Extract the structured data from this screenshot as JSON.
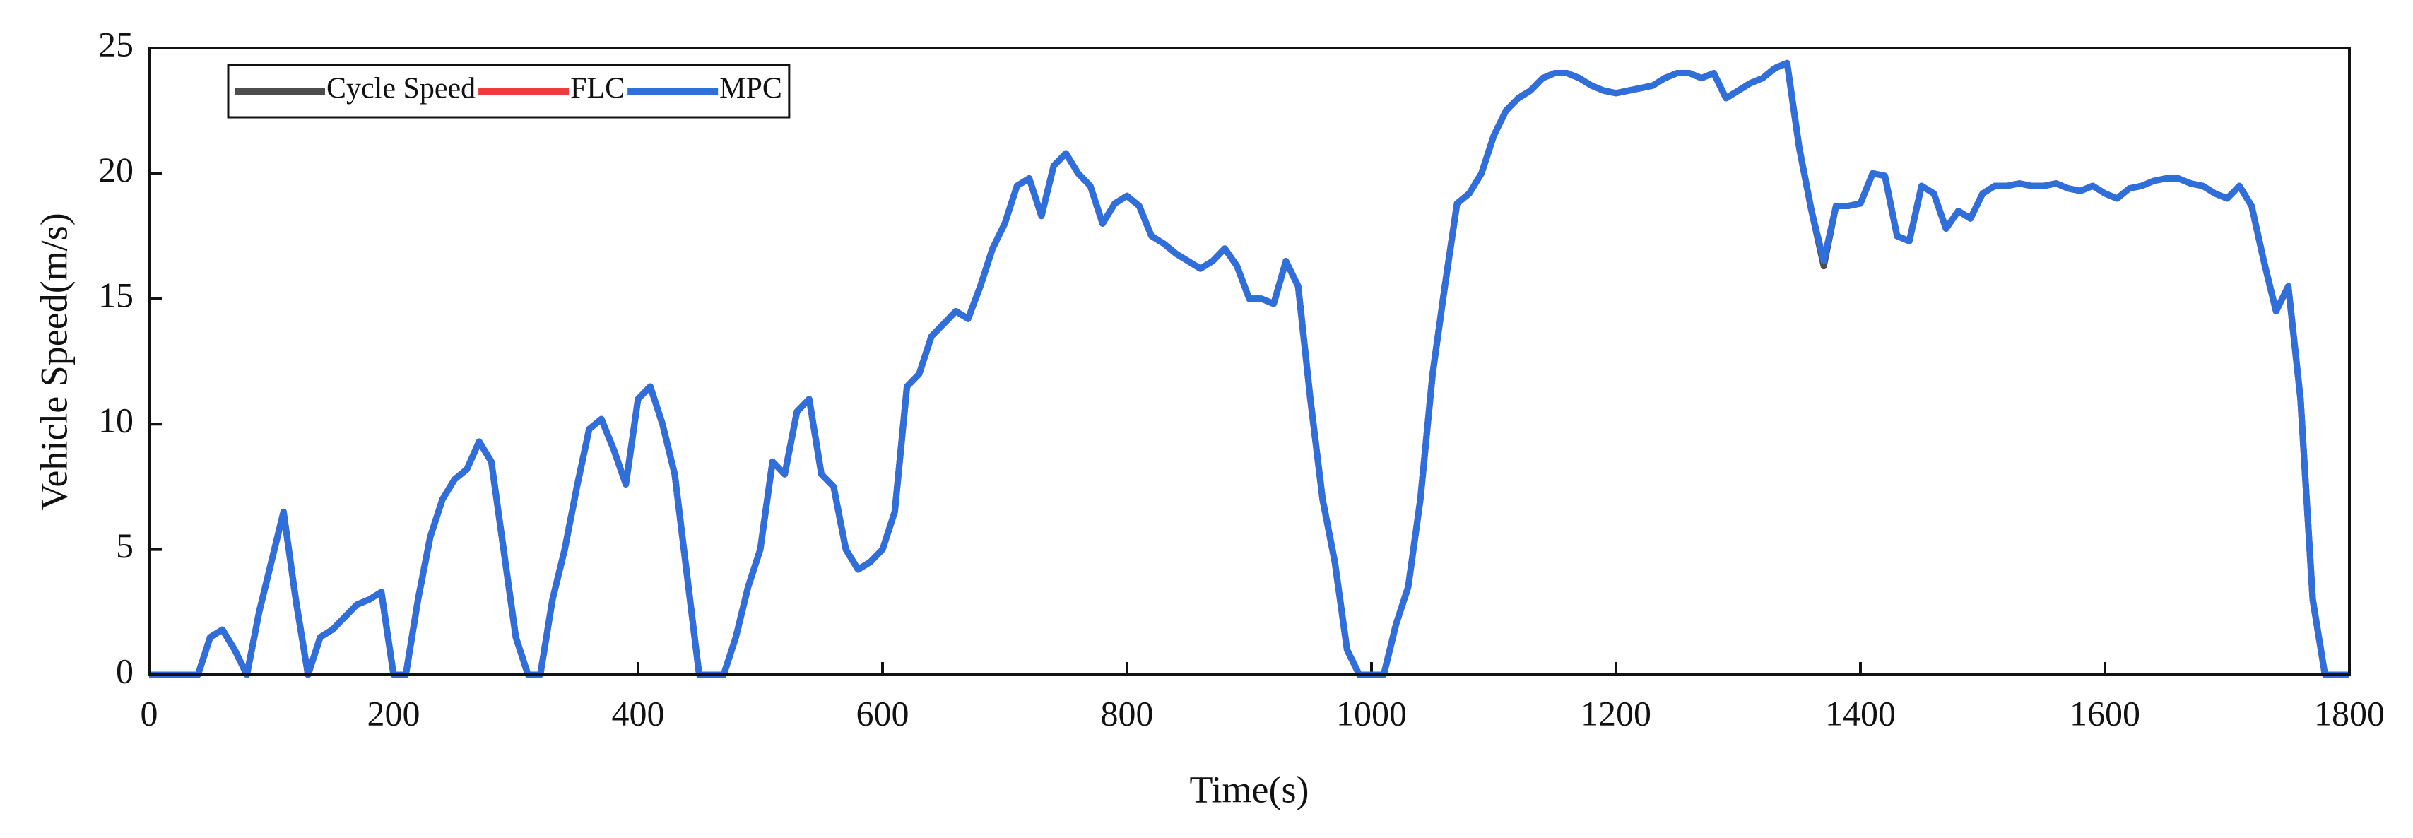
{
  "chart_data": {
    "type": "line",
    "xlabel": "Time(s)",
    "ylabel": "Vehicle Speed(m/s)",
    "xlim": [
      0,
      1800
    ],
    "xticks": [
      0,
      200,
      400,
      600,
      800,
      1000,
      1200,
      1400,
      1600,
      1800
    ],
    "ylim": [
      0,
      25
    ],
    "yticks": [
      0,
      5,
      10,
      15,
      20,
      25
    ],
    "legend": "upper left",
    "grid": false,
    "x": [
      0,
      10,
      20,
      30,
      40,
      50,
      60,
      70,
      80,
      90,
      100,
      110,
      120,
      130,
      140,
      150,
      160,
      170,
      180,
      190,
      200,
      210,
      220,
      230,
      240,
      250,
      260,
      270,
      280,
      290,
      300,
      310,
      320,
      330,
      340,
      350,
      360,
      370,
      380,
      390,
      400,
      410,
      420,
      430,
      440,
      450,
      460,
      470,
      480,
      490,
      500,
      510,
      520,
      530,
      540,
      550,
      560,
      570,
      580,
      590,
      600,
      610,
      620,
      630,
      640,
      650,
      660,
      670,
      680,
      690,
      700,
      710,
      720,
      730,
      740,
      750,
      760,
      770,
      780,
      790,
      800,
      810,
      820,
      830,
      840,
      850,
      860,
      870,
      880,
      890,
      900,
      910,
      920,
      930,
      940,
      950,
      960,
      970,
      980,
      990,
      1000,
      1010,
      1020,
      1030,
      1040,
      1050,
      1060,
      1070,
      1080,
      1090,
      1100,
      1110,
      1120,
      1130,
      1140,
      1150,
      1160,
      1170,
      1180,
      1190,
      1200,
      1210,
      1220,
      1230,
      1240,
      1250,
      1260,
      1270,
      1280,
      1290,
      1300,
      1310,
      1320,
      1330,
      1340,
      1350,
      1360,
      1370,
      1380,
      1390,
      1400,
      1410,
      1420,
      1430,
      1440,
      1450,
      1460,
      1470,
      1480,
      1490,
      1500,
      1510,
      1520,
      1530,
      1540,
      1550,
      1560,
      1570,
      1580,
      1590,
      1600,
      1610,
      1620,
      1630,
      1640,
      1650,
      1660,
      1670,
      1680,
      1690,
      1700,
      1710,
      1720,
      1730,
      1740,
      1750,
      1760,
      1770,
      1780,
      1790,
      1800
    ],
    "series": [
      {
        "name": "Cycle Speed",
        "color": "#4d4d4d",
        "values": [
          0,
          0,
          0,
          0,
          0,
          1.5,
          1.8,
          1.0,
          0,
          2.5,
          4.5,
          6.5,
          3,
          0,
          1.5,
          1.8,
          2.3,
          2.8,
          3.0,
          3.3,
          0,
          0,
          3,
          5.5,
          7,
          7.8,
          8.2,
          9.3,
          8.5,
          5,
          1.5,
          0,
          0,
          3,
          5,
          7.5,
          9.8,
          10.2,
          9,
          7.6,
          11,
          11.5,
          10,
          8,
          4,
          0,
          0,
          0,
          1.5,
          3.5,
          5,
          8.5,
          8,
          10.5,
          11,
          8,
          7.5,
          5,
          4.2,
          4.5,
          5,
          6.5,
          11.5,
          12,
          13.5,
          14,
          14.5,
          14.2,
          15.5,
          17,
          18,
          19.5,
          19.8,
          18.3,
          20.3,
          20.8,
          20,
          19.5,
          18,
          18.8,
          19.1,
          18.7,
          17.5,
          17.2,
          16.8,
          16.5,
          16.2,
          16.5,
          17.0,
          16.3,
          15,
          15.0,
          14.8,
          16.5,
          15.5,
          11,
          7,
          4.5,
          1,
          0,
          0,
          0,
          2,
          3.5,
          7,
          12,
          15.5,
          18.8,
          19.2,
          20,
          21.5,
          22.5,
          23,
          23.3,
          23.8,
          24,
          24,
          23.8,
          23.5,
          23.3,
          23.2,
          23.3,
          23.4,
          23.5,
          23.8,
          24,
          24,
          23.8,
          24,
          23,
          23.3,
          23.6,
          23.8,
          24.2,
          24.4,
          21,
          18.5,
          16.3,
          18.7,
          18.7,
          18.8,
          20,
          19.9,
          17.5,
          17.3,
          19.5,
          19.2,
          17.8,
          18.5,
          18.2,
          19.2,
          19.5,
          19.5,
          19.6,
          19.5,
          19.5,
          19.6,
          19.4,
          19.3,
          19.5,
          19.2,
          19.0,
          19.4,
          19.5,
          19.7,
          19.8,
          19.8,
          19.6,
          19.5,
          19.2,
          19.0,
          19.5,
          18.7,
          16.5,
          14.5,
          15.5,
          11,
          3,
          0,
          0,
          0
        ]
      },
      {
        "name": "FLC",
        "color": "#ee3b3b",
        "values": [
          0,
          0,
          0,
          0,
          0,
          1.5,
          1.8,
          1.0,
          0,
          2.5,
          4.5,
          6.5,
          3,
          0,
          1.5,
          1.8,
          2.3,
          2.8,
          3.0,
          3.3,
          0,
          0,
          3,
          5.5,
          7,
          7.8,
          8.2,
          9.3,
          8.5,
          5,
          1.5,
          0,
          0,
          3,
          5,
          7.5,
          9.8,
          10.2,
          9,
          7.6,
          11,
          11.5,
          10,
          8,
          4,
          0,
          0,
          0,
          1.5,
          3.5,
          5,
          8.5,
          8,
          10.5,
          11,
          8,
          7.5,
          5,
          4.2,
          4.5,
          5,
          6.5,
          11.5,
          12,
          13.5,
          14,
          14.5,
          14.2,
          15.5,
          17,
          18,
          19.5,
          19.8,
          18.3,
          20.3,
          20.8,
          20,
          19.5,
          18,
          18.8,
          19.1,
          18.7,
          17.5,
          17.2,
          16.8,
          16.5,
          16.2,
          16.5,
          17.0,
          16.3,
          15,
          15.0,
          14.8,
          16.5,
          15.5,
          11,
          7,
          4.5,
          1,
          0,
          0,
          0,
          2,
          3.5,
          7,
          12,
          15.5,
          18.8,
          19.2,
          20,
          21.5,
          22.5,
          23,
          23.3,
          23.8,
          24,
          24,
          23.8,
          23.5,
          23.3,
          23.2,
          23.3,
          23.4,
          23.5,
          23.8,
          24,
          24,
          23.8,
          24,
          23,
          23.3,
          23.6,
          23.8,
          24.2,
          24.4,
          21,
          18.5,
          16.5,
          18.7,
          18.7,
          18.8,
          20,
          19.9,
          17.5,
          17.3,
          19.5,
          19.2,
          17.8,
          18.5,
          18.2,
          19.2,
          19.5,
          19.5,
          19.6,
          19.5,
          19.5,
          19.6,
          19.4,
          19.3,
          19.5,
          19.2,
          19.0,
          19.4,
          19.5,
          19.7,
          19.8,
          19.8,
          19.6,
          19.5,
          19.2,
          19.0,
          19.5,
          18.7,
          16.5,
          14.5,
          15.5,
          11,
          3,
          0,
          0,
          0
        ]
      },
      {
        "name": "MPC",
        "color": "#2f6fdc",
        "values": [
          0,
          0,
          0,
          0,
          0,
          1.5,
          1.8,
          1.0,
          0,
          2.5,
          4.5,
          6.5,
          3,
          0,
          1.5,
          1.8,
          2.3,
          2.8,
          3.0,
          3.3,
          0,
          0,
          3,
          5.5,
          7,
          7.8,
          8.2,
          9.3,
          8.5,
          5,
          1.5,
          0,
          0,
          3,
          5,
          7.5,
          9.8,
          10.2,
          9,
          7.6,
          11,
          11.5,
          10,
          8,
          4,
          0,
          0,
          0,
          1.5,
          3.5,
          5,
          8.5,
          8,
          10.5,
          11,
          8,
          7.5,
          5,
          4.2,
          4.5,
          5,
          6.5,
          11.5,
          12,
          13.5,
          14,
          14.5,
          14.2,
          15.5,
          17,
          18,
          19.5,
          19.8,
          18.3,
          20.3,
          20.8,
          20,
          19.5,
          18,
          18.8,
          19.1,
          18.7,
          17.5,
          17.2,
          16.8,
          16.5,
          16.2,
          16.5,
          17.0,
          16.3,
          15,
          15.0,
          14.8,
          16.5,
          15.5,
          11,
          7,
          4.5,
          1,
          0,
          0,
          0,
          2,
          3.5,
          7,
          12,
          15.5,
          18.8,
          19.2,
          20,
          21.5,
          22.5,
          23,
          23.3,
          23.8,
          24,
          24,
          23.8,
          23.5,
          23.3,
          23.2,
          23.3,
          23.4,
          23.5,
          23.8,
          24,
          24,
          23.8,
          24,
          23,
          23.3,
          23.6,
          23.8,
          24.2,
          24.4,
          21,
          18.5,
          16.5,
          18.7,
          18.7,
          18.8,
          20,
          19.9,
          17.5,
          17.3,
          19.5,
          19.2,
          17.8,
          18.5,
          18.2,
          19.2,
          19.5,
          19.5,
          19.6,
          19.5,
          19.5,
          19.6,
          19.4,
          19.3,
          19.5,
          19.2,
          19.0,
          19.4,
          19.5,
          19.7,
          19.8,
          19.8,
          19.6,
          19.5,
          19.2,
          19.0,
          19.5,
          18.7,
          16.5,
          14.5,
          15.5,
          11,
          3,
          0,
          0,
          0
        ]
      }
    ]
  }
}
